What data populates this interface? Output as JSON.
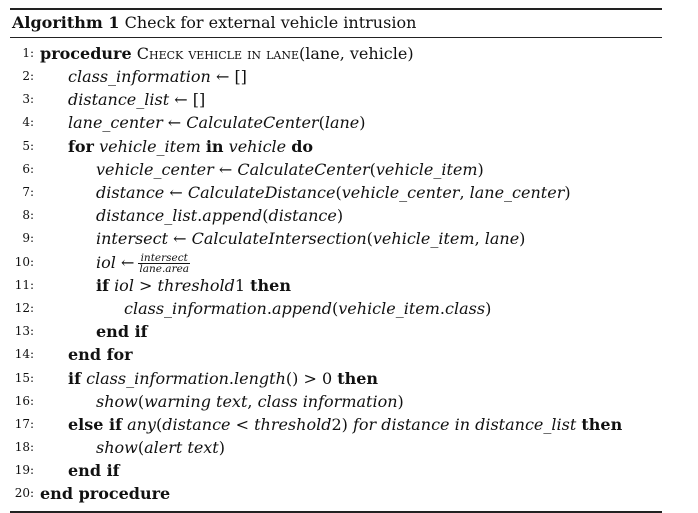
{
  "algorithm": {
    "caption_label": "Algorithm 1",
    "caption_title": "Check for external vehicle intrusion",
    "lines": [
      {
        "num": "1:",
        "indent": 0,
        "parts": [
          {
            "t": "procedure",
            "s": "kw"
          },
          {
            "t": " "
          },
          {
            "t": "Check vehicle in lane",
            "s": "sc"
          },
          {
            "t": "(lane, vehicle)"
          }
        ]
      },
      {
        "num": "2:",
        "indent": 1,
        "parts": [
          {
            "t": "class_information",
            "s": "it"
          },
          {
            "t": " ← []"
          }
        ]
      },
      {
        "num": "3:",
        "indent": 1,
        "parts": [
          {
            "t": "distance_list",
            "s": "it"
          },
          {
            "t": " ← []"
          }
        ]
      },
      {
        "num": "4:",
        "indent": 1,
        "parts": [
          {
            "t": "lane_center",
            "s": "it"
          },
          {
            "t": " ← "
          },
          {
            "t": "CalculateCenter",
            "s": "it"
          },
          {
            "t": "("
          },
          {
            "t": "lane",
            "s": "it"
          },
          {
            "t": ")"
          }
        ]
      },
      {
        "num": "5:",
        "indent": 1,
        "parts": [
          {
            "t": "for",
            "s": "kw"
          },
          {
            "t": " "
          },
          {
            "t": "vehicle_item",
            "s": "it"
          },
          {
            "t": " "
          },
          {
            "t": "in",
            "s": "kw"
          },
          {
            "t": " "
          },
          {
            "t": "vehicle",
            "s": "it"
          },
          {
            "t": " "
          },
          {
            "t": "do",
            "s": "kw"
          }
        ]
      },
      {
        "num": "6:",
        "indent": 2,
        "parts": [
          {
            "t": "vehicle_center",
            "s": "it"
          },
          {
            "t": " ← "
          },
          {
            "t": "CalculateCenter",
            "s": "it"
          },
          {
            "t": "("
          },
          {
            "t": "vehicle_item",
            "s": "it"
          },
          {
            "t": ")"
          }
        ]
      },
      {
        "num": "7:",
        "indent": 2,
        "parts": [
          {
            "t": "distance",
            "s": "it"
          },
          {
            "t": " ← "
          },
          {
            "t": "CalculateDistance",
            "s": "it"
          },
          {
            "t": "("
          },
          {
            "t": "vehicle_center",
            "s": "it"
          },
          {
            "t": ", "
          },
          {
            "t": "lane_center",
            "s": "it"
          },
          {
            "t": ")"
          }
        ]
      },
      {
        "num": "8:",
        "indent": 2,
        "parts": [
          {
            "t": "distance_list",
            "s": "it"
          },
          {
            "t": "."
          },
          {
            "t": "append",
            "s": "it"
          },
          {
            "t": "("
          },
          {
            "t": "distance",
            "s": "it"
          },
          {
            "t": ")"
          }
        ]
      },
      {
        "num": "9:",
        "indent": 2,
        "parts": [
          {
            "t": "intersect",
            "s": "it"
          },
          {
            "t": " ← "
          },
          {
            "t": "CalculateIntersection",
            "s": "it"
          },
          {
            "t": "("
          },
          {
            "t": "vehicle_item",
            "s": "it"
          },
          {
            "t": ", "
          },
          {
            "t": "lane",
            "s": "it"
          },
          {
            "t": ")"
          }
        ]
      },
      {
        "num": "10:",
        "indent": 2,
        "parts": [
          {
            "t": "iol",
            "s": "it"
          },
          {
            "t": " ←"
          }
        ],
        "frac": {
          "num": "intersect",
          "den": "lane.area"
        }
      },
      {
        "num": "11:",
        "indent": 2,
        "parts": [
          {
            "t": "if",
            "s": "kw"
          },
          {
            "t": " "
          },
          {
            "t": "iol",
            "s": "it"
          },
          {
            "t": " > "
          },
          {
            "t": "threshold",
            "s": "it"
          },
          {
            "t": "1 "
          },
          {
            "t": "then",
            "s": "kw"
          }
        ]
      },
      {
        "num": "12:",
        "indent": 3,
        "parts": [
          {
            "t": "class_information",
            "s": "it"
          },
          {
            "t": "."
          },
          {
            "t": "append",
            "s": "it"
          },
          {
            "t": "("
          },
          {
            "t": "vehicle_item",
            "s": "it"
          },
          {
            "t": "."
          },
          {
            "t": "class",
            "s": "it"
          },
          {
            "t": ")"
          }
        ]
      },
      {
        "num": "13:",
        "indent": 2,
        "parts": [
          {
            "t": "end if",
            "s": "kw"
          }
        ]
      },
      {
        "num": "14:",
        "indent": 1,
        "parts": [
          {
            "t": "end for",
            "s": "kw"
          }
        ]
      },
      {
        "num": "15:",
        "indent": 1,
        "parts": [
          {
            "t": "if",
            "s": "kw"
          },
          {
            "t": " "
          },
          {
            "t": "class_information",
            "s": "it"
          },
          {
            "t": "."
          },
          {
            "t": "length",
            "s": "it"
          },
          {
            "t": "() > 0 "
          },
          {
            "t": "then",
            "s": "kw"
          }
        ]
      },
      {
        "num": "16:",
        "indent": 2,
        "parts": [
          {
            "t": "show",
            "s": "it"
          },
          {
            "t": "("
          },
          {
            "t": "warning text",
            "s": "it"
          },
          {
            "t": ", "
          },
          {
            "t": "class information",
            "s": "it"
          },
          {
            "t": ")"
          }
        ]
      },
      {
        "num": "17:",
        "indent": 1,
        "parts": [
          {
            "t": "else if",
            "s": "kw"
          },
          {
            "t": " "
          },
          {
            "t": "any",
            "s": "it"
          },
          {
            "t": "("
          },
          {
            "t": "distance",
            "s": "it"
          },
          {
            "t": " < "
          },
          {
            "t": "threshold",
            "s": "it"
          },
          {
            "t": "2) "
          },
          {
            "t": "for distance in distance_list",
            "s": "it"
          },
          {
            "t": " "
          },
          {
            "t": "then",
            "s": "kw"
          }
        ]
      },
      {
        "num": "18:",
        "indent": 2,
        "parts": [
          {
            "t": "show",
            "s": "it"
          },
          {
            "t": "("
          },
          {
            "t": "alert text",
            "s": "it"
          },
          {
            "t": ")"
          }
        ]
      },
      {
        "num": "19:",
        "indent": 1,
        "parts": [
          {
            "t": "end if",
            "s": "kw"
          }
        ]
      },
      {
        "num": "20:",
        "indent": 0,
        "parts": [
          {
            "t": "end procedure",
            "s": "kw"
          }
        ]
      }
    ]
  }
}
